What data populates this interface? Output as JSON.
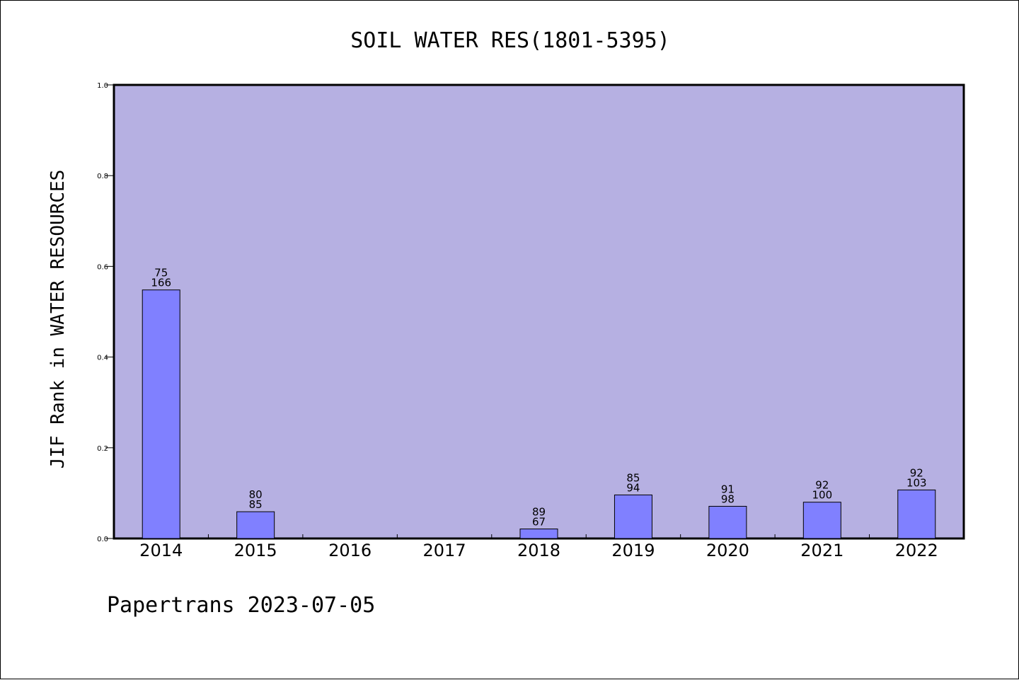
{
  "footer": {
    "text": "Papertrans 2023-07-05"
  },
  "colors": {
    "plot_background": "#b6b0e2",
    "bar_fill": "#8080ff",
    "bar_stroke": "#000000",
    "axis": "#000000"
  },
  "chart_data": {
    "type": "bar",
    "title": "SOIL WATER RES(1801-5395)",
    "xlabel": "",
    "ylabel": "JIF Rank in WATER RESOURCES",
    "ylim": [
      0,
      1.0
    ],
    "yticks": [
      "0.0",
      "0.2",
      "0.4",
      "0.6",
      "0.8",
      "1.0"
    ],
    "grid": false,
    "categories": [
      "2014",
      "2015",
      "2016",
      "2017",
      "2018",
      "2019",
      "2020",
      "2021",
      "2022"
    ],
    "values": [
      0.548,
      0.059,
      null,
      null,
      0.021,
      0.096,
      0.071,
      0.08,
      0.107
    ],
    "labels_top": [
      "75",
      "80",
      "",
      "",
      "89",
      "85",
      "91",
      "92",
      "92"
    ],
    "labels_bottom": [
      "166",
      "85",
      "",
      "",
      "67",
      "94",
      "98",
      "100",
      "103"
    ]
  }
}
